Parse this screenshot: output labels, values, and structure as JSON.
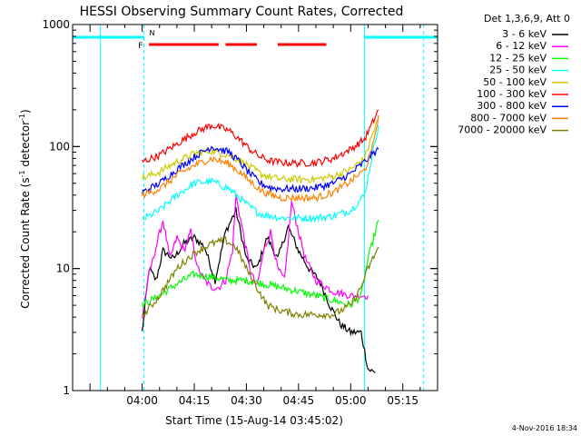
{
  "chart_data": {
    "type": "line",
    "title": "HESSI Observing Summary Count Rates, Corrected",
    "xlabel": "Start Time (15-Aug-14 03:45:02)",
    "ylabel_main": "Corrected Count Rate (s",
    "ylabel_sup1": "-1",
    "ylabel_mid": " detector",
    "ylabel_sup2": "-1",
    "ylabel_end": ")",
    "yscale": "log",
    "ylim": [
      1,
      1000
    ],
    "xlim_minutes": [
      -20,
      85
    ],
    "x_tick_labels": [
      "04:00",
      "04:15",
      "04:30",
      "04:45",
      "05:00",
      "05:15"
    ],
    "x_tick_minutes": [
      0,
      15,
      30,
      45,
      60,
      75
    ],
    "y_tick_labels": [
      "1",
      "10",
      "100",
      "1000"
    ],
    "y_tick_values": [
      1,
      10,
      100,
      1000
    ],
    "legend_title": "Det 1,3,6,9, Att 0",
    "legend_placement": "right",
    "timestamp": "4-Nov-2016 18:34",
    "flag_labels": {
      "night": "N",
      "flare": "F"
    },
    "night_intervals": [
      [
        -20,
        0.5
      ],
      [
        64,
        85
      ]
    ],
    "flare_bars": [
      [
        2,
        22
      ],
      [
        24,
        33
      ],
      [
        39,
        53
      ]
    ],
    "series": [
      {
        "name": "3 - 6 keV",
        "color": "#000000",
        "x": [
          0,
          2,
          4,
          6,
          9,
          12,
          15,
          18,
          21,
          24,
          27,
          30,
          33,
          36,
          39,
          42,
          45,
          48,
          51,
          54,
          57,
          60,
          63,
          65,
          67
        ],
        "y": [
          3,
          10,
          8,
          14,
          12,
          16,
          18,
          15,
          8,
          20,
          30,
          12,
          10,
          18,
          12,
          22,
          14,
          10,
          8,
          5,
          3.5,
          3,
          3,
          1.5,
          1.4
        ]
      },
      {
        "name": "6 - 12 keV",
        "color": "#ff00ff",
        "x": [
          0,
          2,
          4,
          6,
          8,
          10,
          12,
          14,
          16,
          18,
          20,
          22,
          24,
          26,
          27,
          29,
          31,
          33,
          35,
          37,
          39,
          41,
          43,
          45,
          47,
          50,
          55,
          60,
          65
        ],
        "y": [
          4,
          9,
          15,
          25,
          12,
          18,
          14,
          20,
          10,
          8,
          7,
          7,
          8,
          14,
          40,
          20,
          10,
          7,
          14,
          20,
          10,
          8,
          35,
          20,
          12,
          8,
          6.5,
          6,
          6
        ]
      },
      {
        "name": "12 - 25 keV",
        "color": "#00ff00",
        "x": [
          0,
          5,
          10,
          15,
          20,
          25,
          30,
          35,
          40,
          45,
          50,
          55,
          60,
          63,
          65,
          68
        ],
        "y": [
          5,
          6,
          7.5,
          9,
          8.5,
          8,
          8,
          7.5,
          7,
          6.5,
          6,
          5.5,
          5,
          6,
          12,
          25
        ]
      },
      {
        "name": "25 - 50 keV",
        "color": "#00ffff",
        "x": [
          0,
          5,
          10,
          15,
          20,
          25,
          28,
          31,
          34,
          37,
          40,
          45,
          50,
          55,
          60,
          64,
          66,
          68
        ],
        "y": [
          25,
          30,
          40,
          50,
          52,
          45,
          38,
          32,
          28,
          27,
          26,
          26,
          26,
          27,
          30,
          40,
          80,
          150
        ]
      },
      {
        "name": "50 - 100 keV",
        "color": "#cccc00",
        "x": [
          0,
          5,
          10,
          15,
          20,
          25,
          28,
          31,
          34,
          37,
          40,
          45,
          50,
          55,
          60,
          64,
          66,
          68
        ],
        "y": [
          55,
          62,
          75,
          88,
          92,
          85,
          78,
          68,
          60,
          56,
          54,
          54,
          54,
          57,
          65,
          80,
          120,
          170
        ]
      },
      {
        "name": "100 - 300 keV",
        "color": "#ff0000",
        "x": [
          0,
          5,
          10,
          15,
          20,
          25,
          28,
          31,
          34,
          37,
          40,
          45,
          50,
          55,
          60,
          64,
          66,
          68
        ],
        "y": [
          75,
          85,
          105,
          130,
          150,
          135,
          115,
          95,
          82,
          76,
          74,
          73,
          74,
          80,
          95,
          115,
          150,
          200
        ]
      },
      {
        "name": "300 - 800 keV",
        "color": "#0000ff",
        "x": [
          0,
          5,
          10,
          15,
          20,
          25,
          28,
          31,
          34,
          37,
          40,
          45,
          50,
          55,
          60,
          64,
          66,
          68
        ],
        "y": [
          42,
          50,
          65,
          82,
          100,
          90,
          75,
          60,
          50,
          46,
          45,
          45,
          46,
          50,
          60,
          75,
          85,
          95
        ]
      },
      {
        "name": "800 - 7000 keV",
        "color": "#ff8000",
        "x": [
          0,
          5,
          10,
          15,
          20,
          25,
          28,
          31,
          34,
          37,
          40,
          45,
          50,
          55,
          60,
          64,
          66,
          68
        ],
        "y": [
          40,
          45,
          58,
          70,
          80,
          72,
          62,
          52,
          44,
          40,
          38,
          38,
          38,
          42,
          52,
          64,
          90,
          180
        ]
      },
      {
        "name": "7000 - 20000 keV",
        "color": "#808000",
        "x": [
          0,
          5,
          10,
          13,
          16,
          20,
          24,
          27,
          30,
          33,
          36,
          40,
          45,
          50,
          55,
          60,
          63,
          65,
          68
        ],
        "y": [
          4,
          6,
          10,
          12,
          14,
          16,
          17,
          15,
          10,
          7,
          5,
          4.5,
          4.2,
          4.2,
          4.2,
          5,
          7,
          10,
          15
        ]
      }
    ]
  }
}
